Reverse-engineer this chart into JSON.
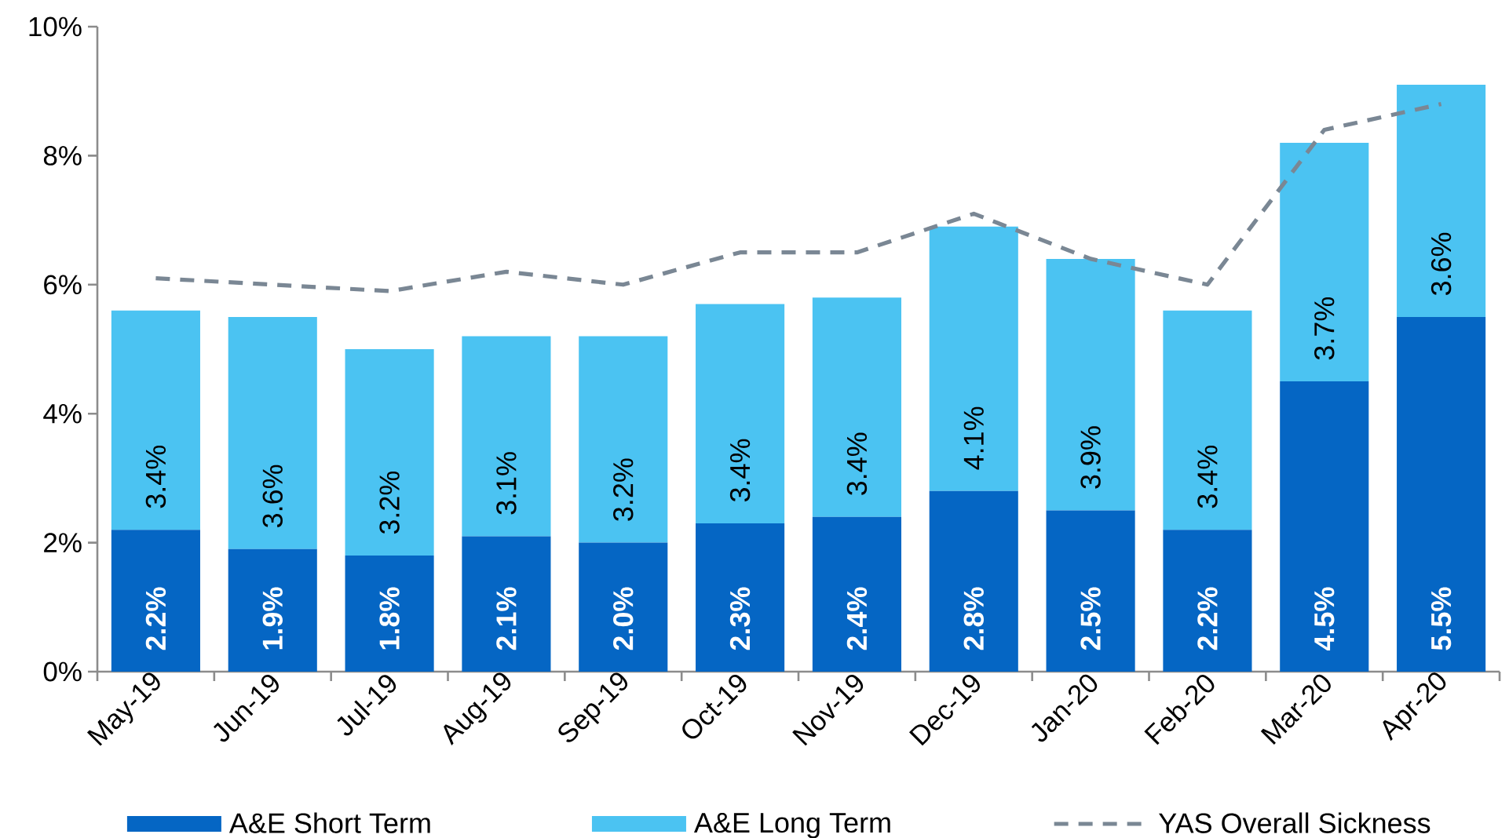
{
  "chart_data": {
    "type": "bar",
    "stacked": true,
    "categories": [
      "May-19",
      "Jun-19",
      "Jul-19",
      "Aug-19",
      "Sep-19",
      "Oct-19",
      "Nov-19",
      "Dec-19",
      "Jan-20",
      "Feb-20",
      "Mar-20",
      "Apr-20"
    ],
    "ylim": [
      0,
      10
    ],
    "yticks": [
      {
        "value": 0,
        "label": "0%"
      },
      {
        "value": 2,
        "label": "2%"
      },
      {
        "value": 4,
        "label": "4%"
      },
      {
        "value": 6,
        "label": "6%"
      },
      {
        "value": 8,
        "label": "8%"
      },
      {
        "value": 10,
        "label": "10%"
      }
    ],
    "legend": "bottom",
    "series": [
      {
        "name": "A&E Short Term",
        "color": "#0566c4",
        "values": [
          2.2,
          1.9,
          1.8,
          2.1,
          2.0,
          2.3,
          2.4,
          2.8,
          2.5,
          2.2,
          4.5,
          5.5
        ],
        "value_labels": [
          "2.2%",
          "1.9%",
          "1.8%",
          "2.1%",
          "2.0%",
          "2.3%",
          "2.4%",
          "2.8%",
          "2.5%",
          "2.2%",
          "4.5%",
          "5.5%"
        ]
      },
      {
        "name": "A&E Long Term",
        "color": "#4bc3f2",
        "values": [
          3.4,
          3.6,
          3.2,
          3.1,
          3.2,
          3.4,
          3.4,
          4.1,
          3.9,
          3.4,
          3.7,
          3.6
        ],
        "value_labels": [
          "3.4%",
          "3.6%",
          "3.2%",
          "3.1%",
          "3.2%",
          "3.4%",
          "3.4%",
          "4.1%",
          "3.9%",
          "3.4%",
          "3.7%",
          "3.6%"
        ]
      },
      {
        "name": "YAS Overall Sickness",
        "type": "line",
        "color": "#7a8794",
        "line_style": "dashed",
        "values": [
          6.1,
          6.0,
          5.9,
          6.2,
          6.0,
          6.5,
          6.5,
          7.1,
          6.4,
          6.0,
          8.4,
          8.8
        ]
      }
    ]
  }
}
